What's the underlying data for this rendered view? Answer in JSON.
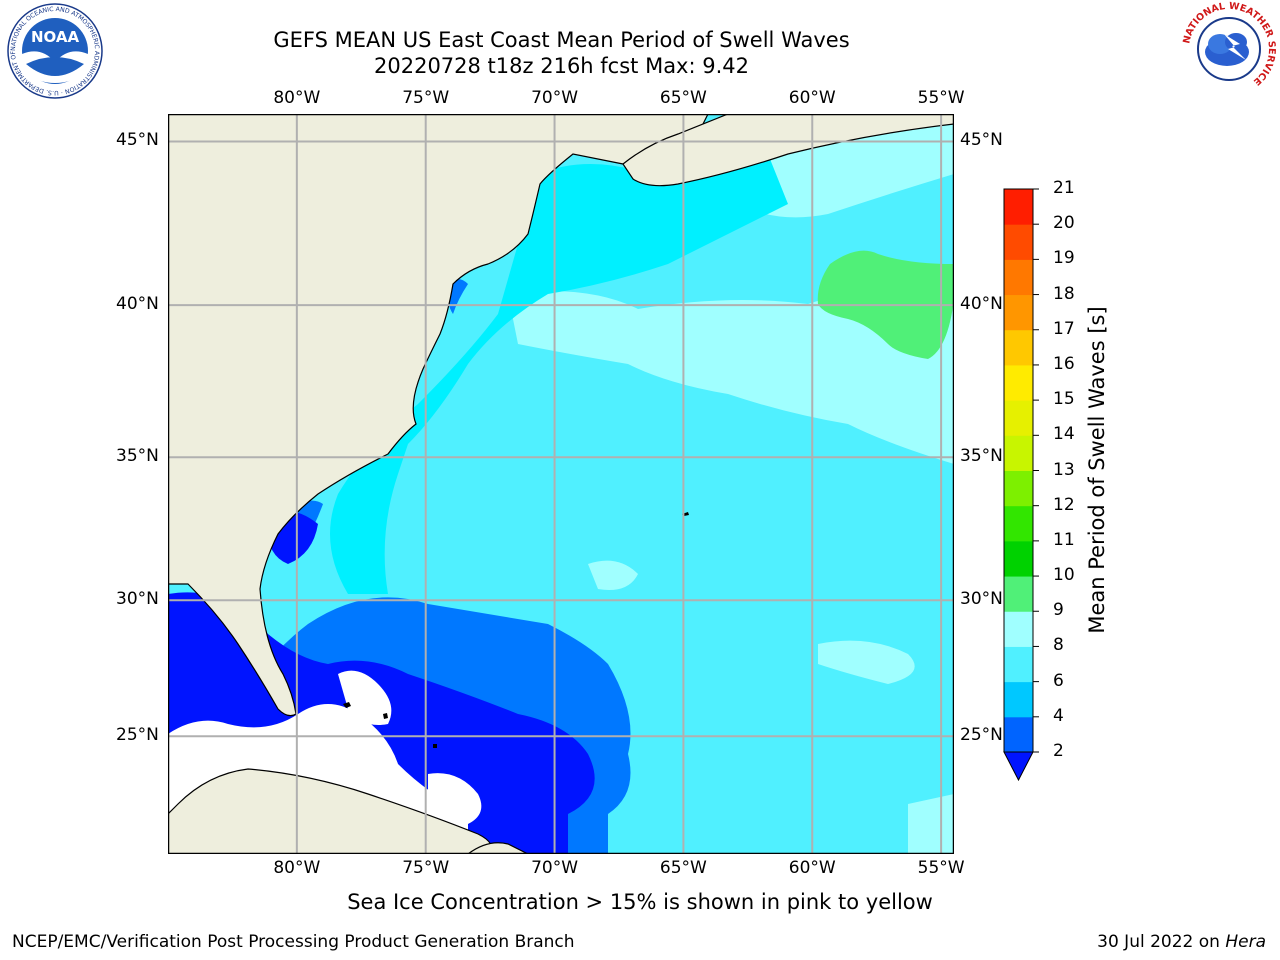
{
  "title_line1": "GEFS MEAN US East Coast Mean Period of Swell Waves",
  "title_line2": "20220728 t18z 216h fcst   Max: 9.42",
  "map": {
    "projection": "mercator-like lon/lat",
    "lon_range": [
      -85,
      -54.5
    ],
    "lat_range": [
      20.5,
      45.8
    ],
    "lon_ticks": [
      "80°W",
      "75°W",
      "70°W",
      "65°W",
      "60°W",
      "55°W"
    ],
    "lat_ticks": [
      "45°N",
      "40°N",
      "35°N",
      "30°N",
      "25°N"
    ],
    "gridlines": true,
    "colors": {
      "land": "#eeeedd",
      "coast": "#000000",
      "grid": "#b0b0b0"
    }
  },
  "colorbar": {
    "label": "Mean Period of Swell Waves [s]",
    "levels": [
      "2",
      "4",
      "6",
      "8",
      "9",
      "10",
      "11",
      "12",
      "13",
      "14",
      "15",
      "16",
      "17",
      "18",
      "19",
      "20",
      "21"
    ],
    "colors": [
      "#0064ff",
      "#00c8ff",
      "#50f0ff",
      "#a0ffff",
      "#50f078",
      "#00d200",
      "#32e600",
      "#7df000",
      "#c8f500",
      "#e6f000",
      "#ffeb00",
      "#ffc800",
      "#ff9600",
      "#ff7800",
      "#ff4b00",
      "#ff1e00"
    ],
    "under_color": "#0014ff",
    "extend": "min"
  },
  "footnote": "Sea Ice Concentration > 15% is shown in pink to yellow",
  "credit_left": "NCEP/EMC/Verification Post Processing Product Generation Branch",
  "credit_date": "30 Jul 2022 on ",
  "credit_machine": "Hera",
  "logos": {
    "left": {
      "name": "noaa-logo",
      "text": "NOAA",
      "ring_text": "NATIONAL OCEANIC AND ATMOSPHERIC ADMINISTRATION · U.S. DEPARTMENT OF COMMERCE"
    },
    "right": {
      "name": "nws-logo",
      "ring_text": "NATIONAL WEATHER SERVICE"
    }
  }
}
